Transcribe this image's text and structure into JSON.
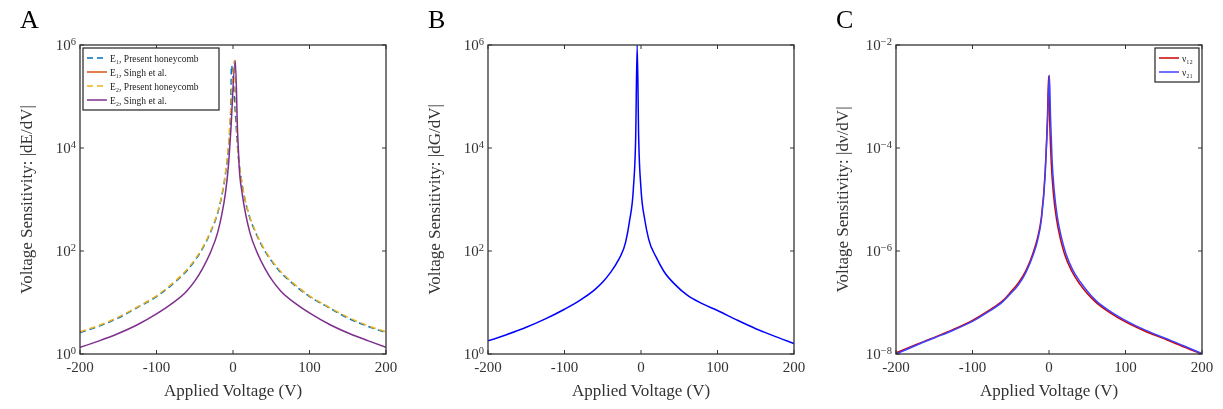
{
  "chart_data": [
    {
      "type": "line",
      "title": "A",
      "xlabel": "Applied Voltage (V)",
      "ylabel": "Voltage Sensitivity: |dE/dV|",
      "xlim": [
        -200,
        200
      ],
      "xticks": [
        -200,
        -100,
        0,
        100,
        200
      ],
      "ylim": [
        1,
        1000000
      ],
      "yticks": [
        {
          "value": 1,
          "label": "10$^{0}$"
        },
        {
          "value": 100,
          "label": "10$^{2}$"
        },
        {
          "value": 10000,
          "label": "10$^{4}$"
        },
        {
          "value": 1000000,
          "label": "10$^{6}$"
        }
      ],
      "log": "y",
      "grid": false,
      "legend": "top left",
      "series": [
        {
          "name": "E₁, Present honeycomb",
          "color": "#0072bd",
          "line_style": "dashed",
          "x": [
            -200,
            -175,
            -150,
            -125,
            -100,
            -80,
            -60,
            -50,
            -40,
            -30,
            -20,
            -15,
            -10,
            -6,
            -3,
            -2,
            3,
            6,
            10,
            15,
            20,
            30,
            40,
            50,
            60,
            80,
            100,
            125,
            150,
            175,
            200
          ],
          "values": [
            2.6,
            3.5,
            5,
            8,
            13,
            22,
            42,
            65,
            110,
            220,
            550,
            1100,
            3000,
            10000,
            50000,
            400000,
            50000,
            10000,
            3000,
            1100,
            550,
            220,
            110,
            65,
            42,
            22,
            13,
            8,
            5,
            3.5,
            2.6
          ]
        },
        {
          "name": "E₁, Singh et al.",
          "color": "#d95319",
          "line_style": "solid"
        },
        {
          "name": "E₂, Present honeycomb",
          "color": "#edb120",
          "line_style": "dashed",
          "x": [
            -200,
            -175,
            -150,
            -125,
            -100,
            -80,
            -60,
            -50,
            -40,
            -30,
            -20,
            -15,
            -10,
            -6,
            -3,
            2,
            4,
            6,
            10,
            15,
            20,
            30,
            40,
            50,
            60,
            80,
            100,
            125,
            150,
            175,
            200
          ],
          "values": [
            2.7,
            3.6,
            5.2,
            8.2,
            13.5,
            23,
            44,
            68,
            115,
            230,
            580,
            1150,
            3200,
            11000,
            55000,
            500000,
            55000,
            11000,
            3200,
            1150,
            580,
            230,
            115,
            68,
            44,
            23,
            13.5,
            8.2,
            5.2,
            3.6,
            2.7
          ]
        },
        {
          "name": "E₂, Singh et al.",
          "color": "#7e2f8e",
          "line_style": "solid",
          "x": [
            -200,
            -175,
            -150,
            -125,
            -100,
            -80,
            -60,
            -50,
            -40,
            -30,
            -20,
            -15,
            -10,
            -6,
            -3,
            3,
            6,
            8,
            12,
            17,
            22,
            32,
            42,
            52,
            62,
            82,
            102,
            127,
            152,
            177,
            200
          ],
          "values": [
            1.35,
            1.8,
            2.5,
            3.7,
            6,
            9.5,
            17,
            26,
            45,
            90,
            230,
            480,
            1300,
            4500,
            20000,
            500000,
            20000,
            4500,
            1300,
            480,
            230,
            90,
            45,
            26,
            17,
            9.5,
            6,
            3.7,
            2.5,
            1.8,
            1.35
          ]
        }
      ]
    },
    {
      "type": "line",
      "title": "B",
      "xlabel": "Applied Voltage (V)",
      "ylabel": "Voltage Sensitivity: |dG/dV|",
      "xlim": [
        -200,
        200
      ],
      "xticks": [
        -200,
        -100,
        0,
        100,
        200
      ],
      "ylim": [
        1,
        1000000
      ],
      "yticks": [
        {
          "value": 1,
          "label": "10$^{0}$"
        },
        {
          "value": 100,
          "label": "10$^{2}$"
        },
        {
          "value": 10000,
          "label": "10$^{4}$"
        },
        {
          "value": 1000000,
          "label": "10$^{6}$"
        }
      ],
      "log": "y",
      "grid": false,
      "series": [
        {
          "color": "#0000ff",
          "line_style": "solid",
          "x": [
            -200,
            -175,
            -150,
            -125,
            -100,
            -80,
            -60,
            -50,
            -40,
            -30,
            -20,
            -15,
            -10,
            -7,
            -5,
            -3,
            0,
            5,
            10,
            20,
            30,
            45,
            60,
            80,
            100,
            125,
            150,
            175,
            200
          ],
          "values": [
            1.8,
            2.4,
            3.3,
            4.8,
            7.4,
            11,
            18,
            25,
            38,
            65,
            150,
            380,
            1600,
            15000,
            1000000,
            15000,
            1600,
            400,
            170,
            75,
            40,
            22,
            14,
            9.5,
            7,
            4.6,
            3.1,
            2.2,
            1.6
          ]
        }
      ]
    },
    {
      "type": "line",
      "title": "C",
      "xlabel": "Applied Voltage (V)",
      "ylabel": "Voltage Sensitivity: |dν/dV|",
      "xlim": [
        -200,
        200
      ],
      "xticks": [
        -200,
        -100,
        0,
        100,
        200
      ],
      "ylim": [
        1e-08,
        0.01
      ],
      "yticks": [
        {
          "value": 1e-08,
          "label": "10$^{−8}$"
        },
        {
          "value": 1e-06,
          "label": "10$^{−6}$"
        },
        {
          "value": 0.0001,
          "label": "10$^{−4}$"
        },
        {
          "value": 0.01,
          "label": "10$^{−2}$"
        }
      ],
      "log": "y",
      "grid": false,
      "legend": "top right",
      "series": [
        {
          "name": "ν₁₂",
          "color": "#cc0000",
          "line_style": "solid",
          "x": [
            -200,
            -175,
            -150,
            -125,
            -100,
            -80,
            -60,
            -50,
            -40,
            -30,
            -20,
            -15,
            -10,
            -5,
            -2,
            -0.5,
            1,
            3,
            6,
            10,
            15,
            20,
            30,
            40,
            50,
            60,
            80,
            100,
            125,
            150,
            175,
            200
          ],
          "values": [
            1.05e-08,
            1.5e-08,
            2.1e-08,
            3e-08,
            4.5e-08,
            6.8e-08,
            1.1e-07,
            1.6e-07,
            2.4e-07,
            4.2e-07,
            1e-06,
            1.8e-06,
            4.5e-06,
            3.5e-05,
            0.0004,
            0.0025,
            0.0003,
            5e-05,
            1.2e-05,
            4e-06,
            1.7e-06,
            9e-07,
            4e-07,
            2.3e-07,
            1.5e-07,
            1.05e-07,
            6.3e-08,
            4.2e-08,
            2.8e-08,
            2e-08,
            1.4e-08,
            1e-08
          ]
        },
        {
          "name": "ν₂₁",
          "color": "#4040ff",
          "line_style": "solid",
          "x": [
            -200,
            -175,
            -150,
            -125,
            -100,
            -80,
            -60,
            -50,
            -40,
            -30,
            -20,
            -15,
            -10,
            -5,
            -2,
            0.5,
            2,
            4,
            7,
            11,
            16,
            21,
            31,
            41,
            51,
            61,
            81,
            101,
            126,
            151,
            176,
            200
          ],
          "values": [
            1e-08,
            1.45e-08,
            2.05e-08,
            2.9e-08,
            4.3e-08,
            6.5e-08,
            1.05e-07,
            1.5e-07,
            2.2e-07,
            3.9e-07,
            9e-07,
            1.6e-06,
            4e-06,
            3e-05,
            0.0003,
            0.0026,
            0.0004,
            6e-05,
            1.4e-05,
            4.5e-06,
            1.9e-06,
            1e-06,
            4.3e-07,
            2.5e-07,
            1.6e-07,
            1.1e-07,
            6.6e-08,
            4.4e-08,
            2.9e-08,
            2.05e-08,
            1.45e-08,
            1.02e-08
          ]
        }
      ]
    }
  ]
}
